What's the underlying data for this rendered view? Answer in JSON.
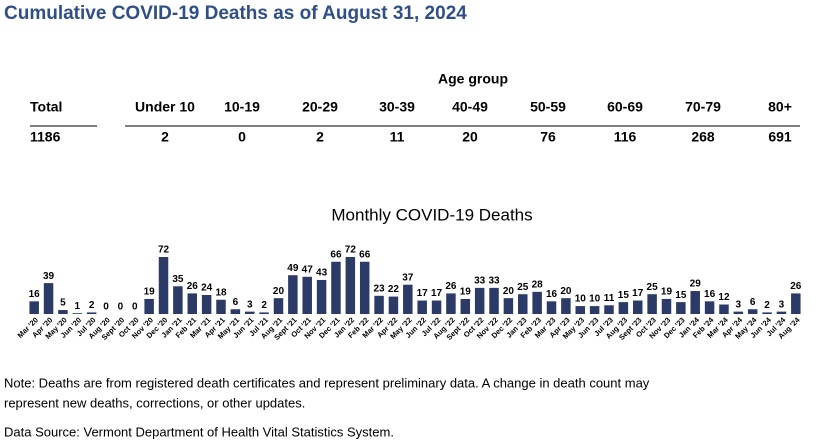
{
  "header": {
    "title": "Cumulative COVID-19 Deaths as of August 31, 2024"
  },
  "table": {
    "group_label": "Age group",
    "columns": [
      "Total",
      "Under 10",
      "10-19",
      "20-29",
      "30-39",
      "40-49",
      "50-59",
      "60-69",
      "70-79",
      "80+"
    ],
    "rows": [
      [
        1186,
        2,
        0,
        2,
        11,
        20,
        76,
        116,
        268,
        691
      ]
    ]
  },
  "chart_data": {
    "type": "bar",
    "title": "Monthly COVID-19 Deaths",
    "color": "#2b3a67",
    "categories": [
      "Mar '20",
      "Apr '20",
      "May '20",
      "Jun '20",
      "Jul '20",
      "Aug '20",
      "Sept '20",
      "Oct '20",
      "Nov '20",
      "Dec '20",
      "Jan '21",
      "Feb '21",
      "Mar '21",
      "Apr '21",
      "May '21",
      "Jun '21",
      "Jul '21",
      "Aug '21",
      "Sept '21",
      "Oct '21",
      "Nov '21",
      "Dec '21",
      "Jan '22",
      "Feb '22",
      "Mar '22",
      "Apr '22",
      "May '22",
      "Jun '22",
      "Jul '22",
      "Aug '22",
      "Sept '22",
      "Oct '22",
      "Nov '22",
      "Dec '22",
      "Jan '23",
      "Feb '23",
      "Mar '23",
      "Apr '23",
      "May '23",
      "Jun '23",
      "Jul '23",
      "Aug '23",
      "Sept '23",
      "Oct '23",
      "Nov '23",
      "Dec '23",
      "Jan '24",
      "Feb '24",
      "Mar '24",
      "Apr '24",
      "May '24",
      "Jun '24",
      "Jul '24",
      "Aug '24"
    ],
    "values": [
      16,
      39,
      5,
      1,
      2,
      0,
      0,
      0,
      19,
      72,
      35,
      26,
      24,
      18,
      6,
      3,
      2,
      20,
      49,
      47,
      43,
      66,
      72,
      66,
      23,
      22,
      37,
      17,
      17,
      26,
      19,
      33,
      33,
      20,
      25,
      28,
      16,
      20,
      10,
      10,
      11,
      15,
      17,
      25,
      19,
      15,
      29,
      16,
      12,
      3,
      6,
      2,
      3,
      26
    ]
  },
  "notes": [
    "Note: Deaths are from registered death certificates and represent preliminary data. A change in death count may",
    "represent new deaths, corrections, or other updates.",
    "Data Source: Vermont Department of Health Vital Statistics System."
  ]
}
